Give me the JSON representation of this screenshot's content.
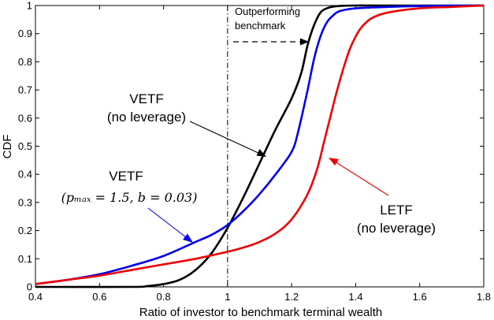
{
  "chart_data": {
    "type": "line",
    "title": "",
    "xlabel": "Ratio of investor to benchmark terminal wealth",
    "ylabel": "CDF",
    "xlim": [
      0.4,
      1.8
    ],
    "ylim": [
      0,
      1
    ],
    "x_ticks": [
      0.4,
      0.6,
      0.8,
      1,
      1.2,
      1.4,
      1.6,
      1.8
    ],
    "y_ticks": [
      0,
      0.1,
      0.2,
      0.3,
      0.4,
      0.5,
      0.6,
      0.7,
      0.8,
      0.9,
      1
    ],
    "x_tick_labels": [
      "0.4",
      "0.6",
      "0.8",
      "1",
      "1.2",
      "1.4",
      "1.6",
      "1.8"
    ],
    "y_tick_labels": [
      "0",
      "0.1",
      "0.2",
      "0.3",
      "0.4",
      "0.5",
      "0.6",
      "0.7",
      "0.8",
      "0.9",
      "1"
    ],
    "grid": false,
    "legend": "none",
    "series": [
      {
        "label_key": "vetf_noleverage",
        "color": "#000000",
        "x": [
          0.4,
          0.7,
          0.75,
          0.8,
          0.85,
          0.9,
          0.95,
          1.0,
          1.05,
          1.1,
          1.15,
          1.2,
          1.23,
          1.25,
          1.27,
          1.29,
          1.31,
          1.33,
          1.36,
          1.4,
          1.5,
          1.8
        ],
        "y": [
          0,
          0,
          0.003,
          0.01,
          0.025,
          0.06,
          0.12,
          0.21,
          0.32,
          0.44,
          0.56,
          0.67,
          0.76,
          0.86,
          0.93,
          0.975,
          0.99,
          0.996,
          0.999,
          1,
          1,
          1
        ]
      },
      {
        "label_key": "vetf_leverage",
        "color": "#0000ee",
        "x": [
          0.4,
          0.5,
          0.6,
          0.7,
          0.8,
          0.9,
          0.95,
          1.0,
          1.05,
          1.1,
          1.15,
          1.2,
          1.22,
          1.25,
          1.27,
          1.29,
          1.31,
          1.33,
          1.35,
          1.4,
          1.5,
          1.6,
          1.8
        ],
        "y": [
          0.01,
          0.025,
          0.045,
          0.075,
          0.11,
          0.16,
          0.185,
          0.22,
          0.27,
          0.33,
          0.4,
          0.48,
          0.55,
          0.7,
          0.81,
          0.89,
          0.94,
          0.965,
          0.98,
          0.99,
          0.995,
          0.998,
          1
        ]
      },
      {
        "label_key": "letf_noleverage",
        "color": "#ee0000",
        "x": [
          0.4,
          0.5,
          0.6,
          0.7,
          0.8,
          0.9,
          1.0,
          1.05,
          1.1,
          1.15,
          1.2,
          1.25,
          1.28,
          1.3,
          1.32,
          1.34,
          1.36,
          1.38,
          1.4,
          1.42,
          1.45,
          1.5,
          1.6,
          1.7,
          1.8
        ],
        "y": [
          0.01,
          0.025,
          0.04,
          0.06,
          0.08,
          0.1,
          0.125,
          0.14,
          0.16,
          0.19,
          0.24,
          0.33,
          0.42,
          0.51,
          0.6,
          0.69,
          0.77,
          0.84,
          0.89,
          0.925,
          0.955,
          0.975,
          0.99,
          0.995,
          1
        ]
      }
    ],
    "reference_line": {
      "x": 1,
      "style": "dash-dot"
    },
    "annotations": {
      "outperforming_line1": "Outperforming",
      "outperforming_line2": "benchmark",
      "vetf_noleverage_line1": "VETF",
      "vetf_noleverage_line2": "(no leverage)",
      "vetf_leverage_line1": "VETF",
      "vetf_leverage_math": "(pₘₐₓ = 1.5, b = 0.03)",
      "letf_line1": "LETF",
      "letf_line2": "(no leverage)"
    }
  }
}
